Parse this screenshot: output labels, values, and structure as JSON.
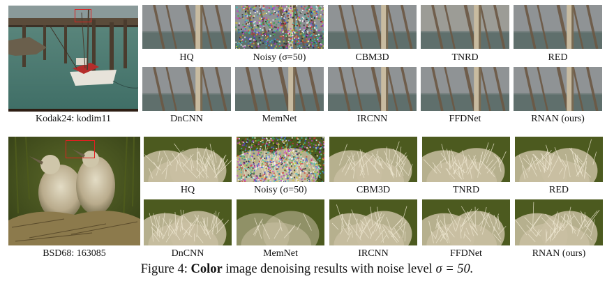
{
  "figure": {
    "number_text": "Figure 4:",
    "bold_text": "Color",
    "rest_text": "image denoising results with noise level",
    "sigma_text": "σ = 50."
  },
  "rows": [
    {
      "name": "kodak",
      "source_label": "Kodak24: kodim11",
      "top_labels": [
        "HQ",
        "Noisy (σ=50)",
        "CBM3D",
        "TNRD",
        "RED"
      ],
      "bottom_labels": [
        "DnCNN",
        "MemNet",
        "IRCNN",
        "FFDNet",
        "RNAN (ours)"
      ]
    },
    {
      "name": "bsd",
      "source_label": "BSD68: 163085",
      "top_labels": [
        "HQ",
        "Noisy (σ=50)",
        "CBM3D",
        "TNRD",
        "RED"
      ],
      "bottom_labels": [
        "DnCNN",
        "MemNet",
        "IRCNN",
        "FFDNet",
        "RNAN (ours)"
      ]
    }
  ]
}
